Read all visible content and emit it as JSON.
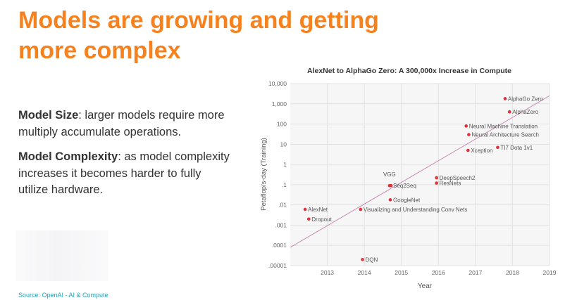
{
  "slide": {
    "title_line1": "Models are growing and getting",
    "title_line2": "more complex",
    "model_size_term": "Model Size",
    "model_size_text": ": larger models require more multiply accumulate operations.",
    "model_complexity_term": "Model Complexity",
    "model_complexity_text": ": as model complexity increases it becomes harder to fully utilize hardware.",
    "source": "Source: OpenAI - AI & Compute"
  },
  "colors": {
    "title": "#f5821f",
    "point": "#e0303a",
    "trend": "#c98ab0",
    "source": "#23a2b8"
  },
  "chart_data": {
    "type": "scatter",
    "title": "AlexNet to AlphaGo Zero: A 300,000x Increase in Compute",
    "xlabel": "Year",
    "ylabel": "Petaflop/s-day (Training)",
    "y_scale": "log",
    "xlim": [
      2012.0,
      2019.0
    ],
    "ylim": [
      1e-05,
      10000
    ],
    "x_ticks": [
      "2013",
      "2014",
      "2015",
      "2016",
      "2017",
      "2018",
      "2019"
    ],
    "y_ticks": [
      ".00001",
      ".0001",
      ".001",
      ".01",
      ".1",
      "1",
      "10",
      "100",
      "1,000",
      "10,000"
    ],
    "grid": true,
    "points": [
      {
        "label": "AlexNet",
        "x": 2012.4,
        "y": 0.006
      },
      {
        "label": "Dropout",
        "x": 2012.5,
        "y": 0.002
      },
      {
        "label": "DQN",
        "x": 2013.95,
        "y": 2e-05
      },
      {
        "label": "Visualizing and Understanding Conv Nets",
        "x": 2013.9,
        "y": 0.006
      },
      {
        "label": "GoogleNet",
        "x": 2014.7,
        "y": 0.018
      },
      {
        "label": "VGG",
        "x": 2014.68,
        "y": 0.09
      },
      {
        "label": "Seq2Seq",
        "x": 2014.72,
        "y": 0.09
      },
      {
        "label": "DeepSpeech2",
        "x": 2015.95,
        "y": 0.22
      },
      {
        "label": "ResNets",
        "x": 2015.95,
        "y": 0.12
      },
      {
        "label": "Neural Machine Translation",
        "x": 2016.75,
        "y": 80
      },
      {
        "label": "Neural Architecture Search",
        "x": 2016.82,
        "y": 30
      },
      {
        "label": "Xception",
        "x": 2016.8,
        "y": 5
      },
      {
        "label": "TI7 Dota 1v1",
        "x": 2017.6,
        "y": 7
      },
      {
        "label": "AlphaGo Zero",
        "x": 2017.8,
        "y": 1800
      },
      {
        "label": "AlphaZero",
        "x": 2017.92,
        "y": 400
      }
    ],
    "trend": {
      "x": [
        2012.0,
        2019.0
      ],
      "y": [
        8e-05,
        2500
      ]
    }
  }
}
